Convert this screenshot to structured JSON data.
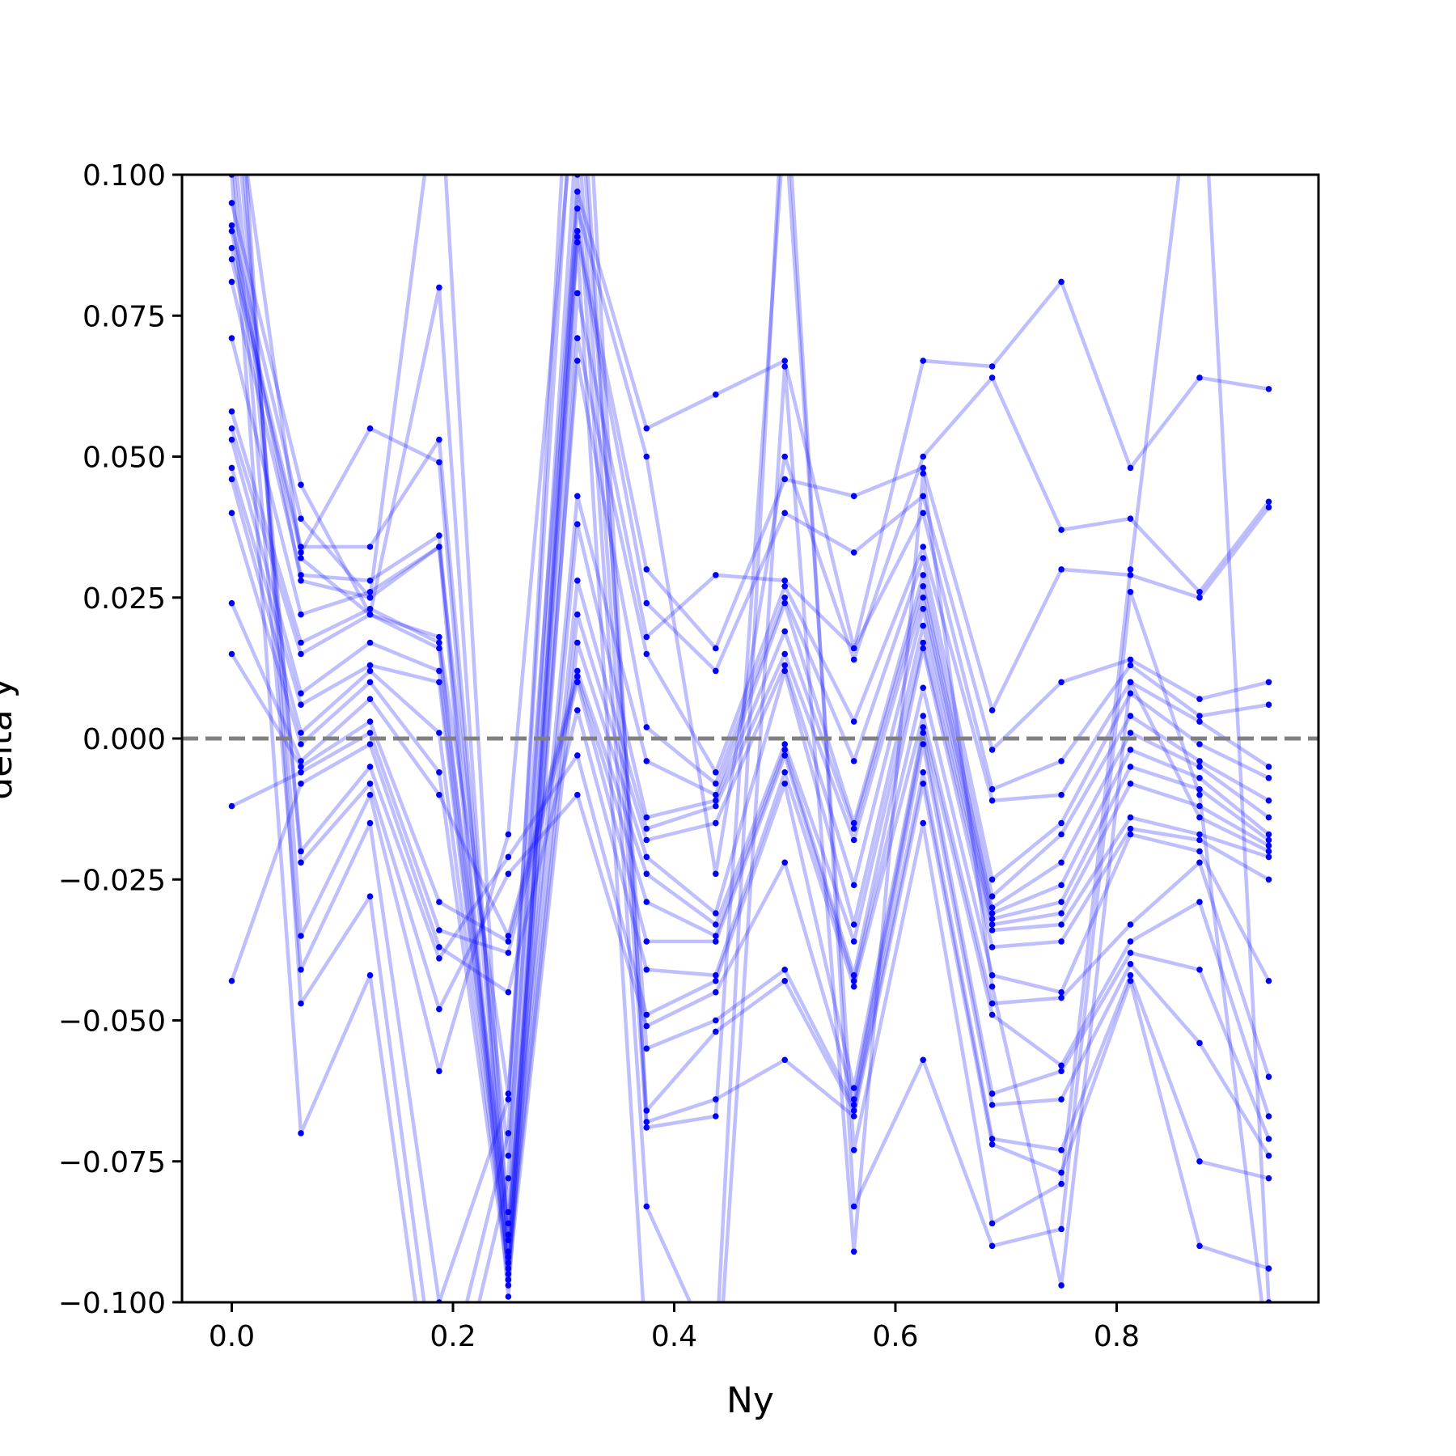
{
  "chart_data": {
    "type": "line",
    "title": "",
    "xlabel": "Ny",
    "ylabel": "delta y",
    "xlim": [
      -0.045,
      0.9825
    ],
    "ylim": [
      -0.1,
      0.1
    ],
    "xticks": [
      0.0,
      0.2,
      0.4,
      0.6,
      0.8
    ],
    "xtick_labels": [
      "0.0",
      "0.2",
      "0.4",
      "0.6",
      "0.8"
    ],
    "yticks": [
      0.1,
      0.075,
      0.05,
      0.025,
      0.0,
      -0.025,
      -0.05,
      -0.075,
      -0.1
    ],
    "ytick_labels": [
      "0.100",
      "0.075",
      "0.050",
      "0.025",
      "0.000",
      "−0.025",
      "−0.050",
      "−0.075",
      "−0.100"
    ],
    "x": [
      0.0,
      0.0625,
      0.125,
      0.1875,
      0.25,
      0.3125,
      0.375,
      0.4375,
      0.5,
      0.5625,
      0.625,
      0.6875,
      0.75,
      0.8125,
      0.875,
      0.9375
    ],
    "series_color": "#0000ff",
    "line_alpha": 0.25,
    "reference_line": {
      "y": 0.0,
      "color": "#808080",
      "style": "dashed"
    },
    "grid": false,
    "series": [
      {
        "values": [
          0.095,
          0.045,
          0.022,
          0.018,
          -0.063,
          0.097,
          0.055,
          0.061,
          0.067,
          0.016,
          0.067,
          0.066,
          0.081,
          0.048,
          0.064,
          0.062
        ]
      },
      {
        "values": [
          0.091,
          0.039,
          0.025,
          0.034,
          -0.074,
          0.094,
          0.05,
          -0.024,
          0.05,
          0.014,
          0.05,
          0.064,
          0.037,
          0.039,
          0.026,
          0.042
        ]
      },
      {
        "values": [
          0.087,
          0.034,
          0.034,
          0.053,
          -0.084,
          0.09,
          0.03,
          0.016,
          0.046,
          0.043,
          0.048,
          0.005,
          0.03,
          0.029,
          0.025,
          0.041
        ]
      },
      {
        "values": [
          0.085,
          0.033,
          0.055,
          0.049,
          -0.089,
          0.089,
          0.024,
          0.012,
          0.04,
          0.033,
          0.043,
          -0.002,
          0.01,
          0.014,
          0.007,
          0.01
        ]
      },
      {
        "values": [
          0.081,
          0.029,
          0.028,
          0.036,
          -0.095,
          0.079,
          0.018,
          0.029,
          0.028,
          0.016,
          0.04,
          -0.009,
          -0.004,
          0.013,
          0.004,
          0.006
        ]
      },
      {
        "values": [
          0.071,
          0.022,
          0.026,
          0.034,
          -0.099,
          0.071,
          0.015,
          -0.006,
          0.027,
          0.003,
          0.034,
          -0.011,
          -0.01,
          0.01,
          0.003,
          -0.005
        ]
      },
      {
        "values": [
          0.058,
          0.017,
          0.023,
          0.017,
          -0.086,
          0.067,
          0.002,
          -0.008,
          0.025,
          -0.004,
          0.032,
          -0.025,
          -0.015,
          0.008,
          -0.001,
          -0.007
        ]
      },
      {
        "values": [
          0.055,
          0.015,
          0.022,
          0.016,
          -0.088,
          0.043,
          -0.004,
          -0.01,
          0.024,
          -0.015,
          0.029,
          -0.028,
          -0.017,
          0.004,
          -0.004,
          -0.011
        ]
      },
      {
        "values": [
          0.053,
          0.008,
          0.017,
          0.012,
          -0.091,
          0.038,
          -0.014,
          -0.011,
          0.019,
          -0.016,
          0.027,
          -0.03,
          -0.022,
          0.001,
          -0.005,
          -0.014
        ]
      },
      {
        "values": [
          0.048,
          0.006,
          0.013,
          0.01,
          -0.093,
          0.028,
          -0.016,
          -0.012,
          0.015,
          -0.018,
          0.025,
          -0.031,
          -0.026,
          -0.002,
          -0.007,
          -0.017
        ]
      },
      {
        "values": [
          0.046,
          0.001,
          0.012,
          0.001,
          -0.094,
          0.022,
          -0.018,
          -0.015,
          0.013,
          -0.026,
          0.023,
          -0.032,
          -0.029,
          -0.005,
          -0.009,
          -0.018
        ]
      },
      {
        "values": [
          0.04,
          -0.001,
          0.01,
          -0.006,
          -0.096,
          0.017,
          -0.021,
          -0.031,
          0.012,
          -0.033,
          0.02,
          -0.033,
          -0.031,
          -0.008,
          -0.012,
          -0.019
        ]
      },
      {
        "values": [
          0.024,
          -0.004,
          0.007,
          -0.01,
          -0.035,
          0.012,
          -0.024,
          -0.033,
          -0.001,
          -0.036,
          0.017,
          -0.034,
          -0.033,
          -0.014,
          -0.017,
          -0.021
        ]
      },
      {
        "values": [
          0.015,
          -0.005,
          0.003,
          -0.029,
          -0.036,
          0.011,
          -0.029,
          -0.035,
          -0.002,
          -0.042,
          0.016,
          -0.037,
          -0.036,
          -0.016,
          -0.018,
          -0.025
        ]
      },
      {
        "values": [
          -0.012,
          -0.006,
          0.001,
          -0.034,
          -0.038,
          0.01,
          -0.036,
          -0.036,
          -0.003,
          -0.043,
          0.009,
          -0.042,
          -0.045,
          -0.017,
          -0.02,
          -0.043
        ]
      },
      {
        "values": [
          -0.043,
          -0.008,
          -0.001,
          -0.037,
          -0.045,
          0.005,
          -0.041,
          -0.042,
          -0.006,
          -0.044,
          0.004,
          -0.047,
          -0.046,
          -0.033,
          -0.022,
          -0.06
        ]
      },
      {
        "values": [
          0.11,
          -0.02,
          -0.005,
          -0.039,
          -0.021,
          -0.003,
          -0.049,
          -0.043,
          -0.008,
          -0.062,
          0.002,
          -0.049,
          -0.058,
          -0.036,
          -0.029,
          -0.067
        ]
      },
      {
        "values": [
          0.12,
          -0.022,
          -0.008,
          -0.048,
          -0.024,
          -0.01,
          -0.051,
          -0.045,
          -0.022,
          -0.064,
          0.001,
          -0.063,
          -0.059,
          -0.038,
          -0.041,
          -0.071
        ]
      },
      {
        "values": [
          0.13,
          -0.035,
          -0.01,
          -0.059,
          -0.017,
          0.12,
          -0.055,
          -0.05,
          -0.041,
          -0.065,
          -0.001,
          -0.065,
          -0.064,
          -0.04,
          -0.054,
          -0.074
        ]
      },
      {
        "values": [
          0.105,
          -0.041,
          -0.015,
          -0.1,
          -0.064,
          0.13,
          -0.066,
          -0.052,
          -0.043,
          -0.066,
          -0.006,
          -0.071,
          -0.073,
          -0.042,
          -0.075,
          -0.078
        ]
      },
      {
        "values": [
          0.14,
          -0.047,
          -0.028,
          -0.12,
          -0.07,
          0.15,
          -0.068,
          -0.064,
          -0.057,
          -0.067,
          -0.008,
          -0.072,
          -0.077,
          -0.043,
          -0.09,
          -0.094
        ]
      },
      {
        "values": [
          0.1,
          -0.07,
          -0.042,
          -0.13,
          -0.078,
          0.11,
          -0.069,
          -0.067,
          0.11,
          -0.073,
          -0.015,
          -0.086,
          -0.079,
          0.03,
          0.13,
          -0.1
        ]
      },
      {
        "values": [
          0.12,
          0.032,
          0.022,
          0.08,
          -0.097,
          0.1,
          -0.083,
          -0.11,
          0.12,
          -0.083,
          -0.057,
          -0.09,
          -0.087,
          0.026,
          -0.01,
          -0.11
        ]
      },
      {
        "values": [
          0.09,
          0.028,
          0.025,
          0.12,
          -0.092,
          0.088,
          -0.11,
          -0.12,
          0.066,
          -0.091,
          0.047,
          -0.044,
          -0.097,
          0.01,
          -0.014,
          -0.02
        ]
      }
    ]
  }
}
